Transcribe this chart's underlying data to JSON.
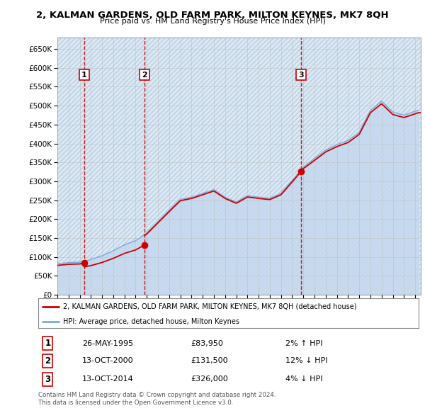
{
  "title": "2, KALMAN GARDENS, OLD FARM PARK, MILTON KEYNES, MK7 8QH",
  "subtitle": "Price paid vs. HM Land Registry's House Price Index (HPI)",
  "yticks": [
    0,
    50000,
    100000,
    150000,
    200000,
    250000,
    300000,
    350000,
    400000,
    450000,
    500000,
    550000,
    600000,
    650000
  ],
  "ylim": [
    0,
    680000
  ],
  "xlim_start": 1993.0,
  "xlim_end": 2025.5,
  "sale_dates": [
    1995.4,
    2000.79,
    2014.79
  ],
  "sale_prices": [
    83950,
    131500,
    326000
  ],
  "sale_labels": [
    "1",
    "2",
    "3"
  ],
  "legend_sale": "2, KALMAN GARDENS, OLD FARM PARK, MILTON KEYNES, MK7 8QH (detached house)",
  "legend_hpi": "HPI: Average price, detached house, Milton Keynes",
  "table_rows": [
    [
      "1",
      "26-MAY-1995",
      "£83,950",
      "2% ↑ HPI"
    ],
    [
      "2",
      "13-OCT-2000",
      "£131,500",
      "12% ↓ HPI"
    ],
    [
      "3",
      "13-OCT-2014",
      "£326,000",
      "4% ↓ HPI"
    ]
  ],
  "footer": "Contains HM Land Registry data © Crown copyright and database right 2024.\nThis data is licensed under the Open Government Licence v3.0.",
  "bg_color": "#dce9f5",
  "hatch_color": "#b8cfe0",
  "grid_color": "#bbbbbb",
  "sale_line_color": "#cc0000",
  "sale_dot_color": "#cc0000",
  "hpi_line_color": "#7aaadd",
  "hpi_fill_color": "#c5d8ee",
  "years_hpi": [
    1993,
    1994,
    1995,
    1996,
    1997,
    1998,
    1999,
    2000,
    2001,
    2002,
    2003,
    2004,
    2005,
    2006,
    2007,
    2008,
    2009,
    2010,
    2011,
    2012,
    2013,
    2014,
    2015,
    2016,
    2017,
    2018,
    2019,
    2020,
    2021,
    2022,
    2023,
    2024,
    2025.3
  ],
  "hpi_values": [
    82000,
    85000,
    86000,
    93000,
    103000,
    116000,
    132000,
    143000,
    163000,
    193000,
    223000,
    252000,
    258000,
    268000,
    278000,
    258000,
    245000,
    262000,
    258000,
    255000,
    268000,
    302000,
    338000,
    360000,
    383000,
    397000,
    408000,
    430000,
    488000,
    512000,
    483000,
    475000,
    488000
  ]
}
